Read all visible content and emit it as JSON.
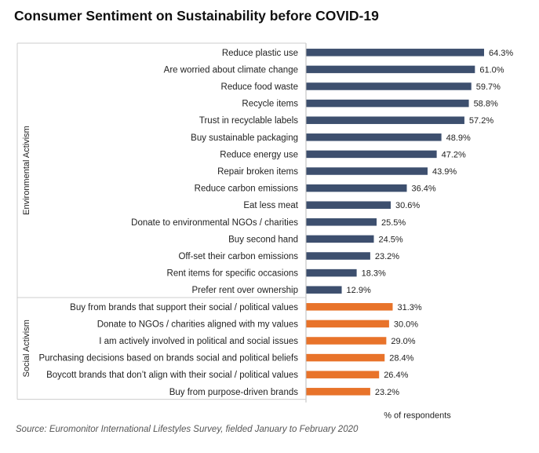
{
  "chart_data": {
    "type": "bar",
    "orientation": "horizontal",
    "title": "Consumer Sentiment on Sustainability before COVID-19",
    "xlabel": "% of respondents",
    "source": "Source: Euromonitor International Lifestyles Survey, fielded January to February 2020",
    "value_suffix": "%",
    "xlim": [
      0,
      100
    ],
    "grid": false,
    "groups": [
      {
        "name": "Environmental Activism",
        "color": "#3d4f6e",
        "categories": [
          "Reduce plastic use",
          "Are worried about climate change",
          "Reduce food waste",
          "Recycle items",
          "Trust in recyclable labels",
          "Buy sustainable packaging",
          "Reduce energy use",
          "Repair broken items",
          "Reduce carbon emissions",
          "Eat less meat",
          "Donate to environmental NGOs / charities",
          "Buy second hand",
          "Off-set their carbon emissions",
          "Rent items for specific occasions",
          "Prefer rent over ownership"
        ],
        "values": [
          64.3,
          61.0,
          59.7,
          58.8,
          57.2,
          48.9,
          47.2,
          43.9,
          36.4,
          30.6,
          25.5,
          24.5,
          23.2,
          18.3,
          12.9
        ]
      },
      {
        "name": "Social Activism",
        "color": "#e8732a",
        "categories": [
          "Buy from brands that support their social / political values",
          "Donate to NGOs / charities aligned with my values",
          "I am actively involved in political and social issues",
          "Purchasing decisions based on brands social and political beliefs",
          "Boycott brands that don’t align with their social / political values",
          "Buy from purpose-driven brands"
        ],
        "values": [
          31.3,
          30.0,
          29.0,
          28.4,
          26.4,
          23.2
        ]
      }
    ]
  }
}
